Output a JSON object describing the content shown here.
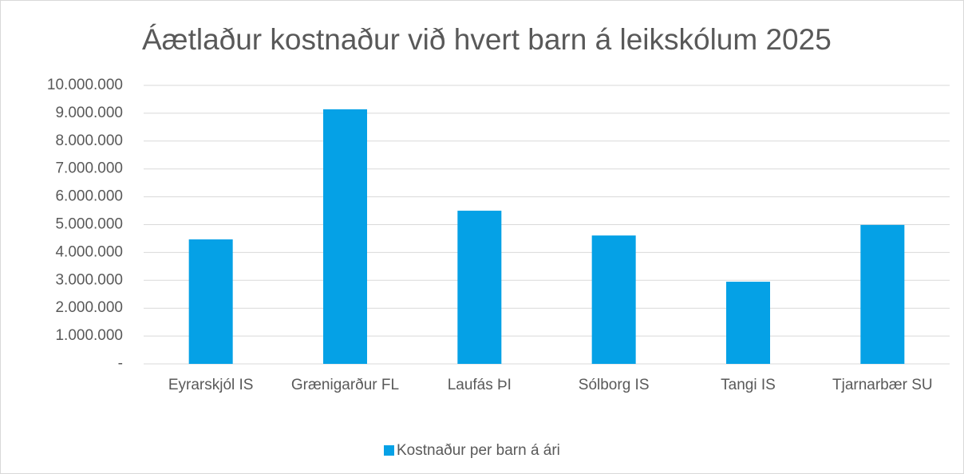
{
  "chart_data": {
    "type": "bar",
    "title": "Áætlaður kostnaður við hvert barn á leikskólum 2025",
    "categories": [
      "Eyrarskjól IS",
      "Grænigarður FL",
      "Laufás ÞI",
      "Sólborg IS",
      "Tangi IS",
      "Tjarnarbær SU"
    ],
    "series": [
      {
        "name": "Kostnaður per barn á ári",
        "color": "#05a1e6",
        "values": [
          4470000,
          9140000,
          5500000,
          4610000,
          2950000,
          4990000
        ]
      }
    ],
    "ylim": [
      0,
      10000000
    ],
    "yticks": [
      {
        "value": 0,
        "label": "-"
      },
      {
        "value": 1000000,
        "label": "1.000.000"
      },
      {
        "value": 2000000,
        "label": "2.000.000"
      },
      {
        "value": 3000000,
        "label": "3.000.000"
      },
      {
        "value": 4000000,
        "label": "4.000.000"
      },
      {
        "value": 5000000,
        "label": "5.000.000"
      },
      {
        "value": 6000000,
        "label": "6.000.000"
      },
      {
        "value": 7000000,
        "label": "7.000.000"
      },
      {
        "value": 8000000,
        "label": "8.000.000"
      },
      {
        "value": 9000000,
        "label": "9.000.000"
      },
      {
        "value": 10000000,
        "label": "10.000.000"
      }
    ],
    "grid": true,
    "legend": "bottom"
  }
}
